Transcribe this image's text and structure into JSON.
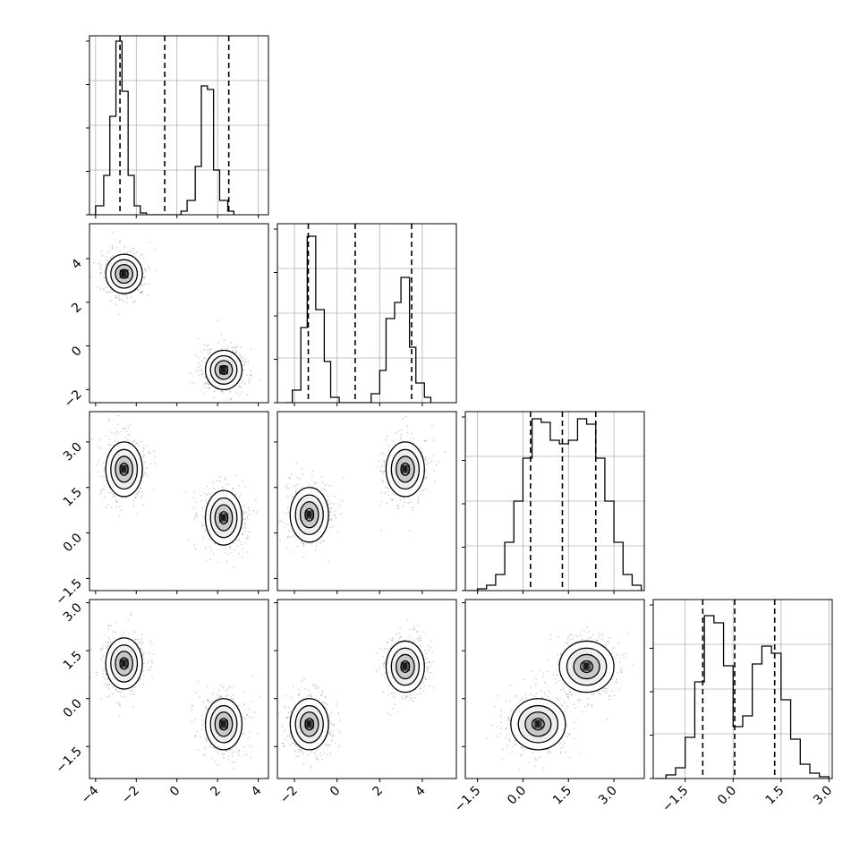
{
  "chart_data": [
    {
      "type": "histogram",
      "panel": "1d-0",
      "grid": true,
      "dashed_lines": [
        -2.8,
        -0.6,
        2.55
      ],
      "bins": [
        [
          -4.3,
          0
        ],
        [
          -4.0,
          0.05
        ],
        [
          -3.6,
          0.22
        ],
        [
          -3.3,
          0.55
        ],
        [
          -3.0,
          0.97
        ],
        [
          -2.7,
          0.69
        ],
        [
          -2.4,
          0.22
        ],
        [
          -2.1,
          0.05
        ],
        [
          -1.8,
          0.01
        ],
        [
          -1.5,
          0
        ],
        [
          0.2,
          0.02
        ],
        [
          0.5,
          0.08
        ],
        [
          0.9,
          0.27
        ],
        [
          1.2,
          0.72
        ],
        [
          1.5,
          0.7
        ],
        [
          1.8,
          0.25
        ],
        [
          2.1,
          0.08
        ],
        [
          2.5,
          0.02
        ],
        [
          2.8,
          0
        ]
      ]
    },
    {
      "type": "histogram",
      "panel": "1d-1",
      "grid": true,
      "dashed_lines": [
        -1.35,
        0.85,
        3.5
      ],
      "bins": [
        [
          -2.4,
          0
        ],
        [
          -2.1,
          0.07
        ],
        [
          -1.7,
          0.42
        ],
        [
          -1.4,
          0.93
        ],
        [
          -1.0,
          0.52
        ],
        [
          -0.6,
          0.23
        ],
        [
          -0.3,
          0.03
        ],
        [
          0.1,
          0
        ],
        [
          1.6,
          0.05
        ],
        [
          2.0,
          0.18
        ],
        [
          2.3,
          0.47
        ],
        [
          2.7,
          0.56
        ],
        [
          3.0,
          0.7
        ],
        [
          3.4,
          0.31
        ],
        [
          3.7,
          0.11
        ],
        [
          4.1,
          0.03
        ],
        [
          4.4,
          0
        ]
      ]
    },
    {
      "type": "histogram",
      "panel": "1d-2",
      "grid": true,
      "dashed_lines": [
        0.25,
        1.3,
        2.4
      ],
      "bins": [
        [
          -1.8,
          0
        ],
        [
          -1.5,
          0.01
        ],
        [
          -1.2,
          0.03
        ],
        [
          -0.9,
          0.09
        ],
        [
          -0.6,
          0.27
        ],
        [
          -0.3,
          0.5
        ],
        [
          0,
          0.74
        ],
        [
          0.3,
          0.96
        ],
        [
          0.6,
          0.94
        ],
        [
          0.9,
          0.84
        ],
        [
          1.2,
          0.82
        ],
        [
          1.5,
          0.84
        ],
        [
          1.8,
          0.96
        ],
        [
          2.1,
          0.93
        ],
        [
          2.4,
          0.74
        ],
        [
          2.7,
          0.5
        ],
        [
          3.0,
          0.27
        ],
        [
          3.3,
          0.09
        ],
        [
          3.6,
          0.03
        ],
        [
          3.9,
          0
        ]
      ]
    },
    {
      "type": "histogram",
      "panel": "1d-3",
      "grid": true,
      "dashed_lines": [
        -0.95,
        0.05,
        1.3
      ],
      "bins": [
        [
          -2.4,
          0
        ],
        [
          -2.1,
          0.02
        ],
        [
          -1.8,
          0.06
        ],
        [
          -1.5,
          0.23
        ],
        [
          -1.2,
          0.54
        ],
        [
          -0.9,
          0.91
        ],
        [
          -0.6,
          0.87
        ],
        [
          -0.3,
          0.63
        ],
        [
          0,
          0.29
        ],
        [
          0.3,
          0.35
        ],
        [
          0.6,
          0.64
        ],
        [
          0.9,
          0.74
        ],
        [
          1.2,
          0.7
        ],
        [
          1.5,
          0.44
        ],
        [
          1.8,
          0.22
        ],
        [
          2.1,
          0.08
        ],
        [
          2.4,
          0.03
        ],
        [
          2.7,
          0.01
        ],
        [
          3.0,
          0
        ]
      ]
    },
    {
      "type": "scatter",
      "panel": "2d-1-0",
      "x_label": "",
      "y_label": "",
      "clusters": [
        {
          "x": -2.6,
          "y": 3.3
        },
        {
          "x": 2.3,
          "y": -1.1
        }
      ]
    },
    {
      "type": "scatter",
      "panel": "2d-2-0",
      "x_label": "",
      "y_label": "",
      "clusters": [
        {
          "x": -2.6,
          "y": 2.1
        },
        {
          "x": 2.3,
          "y": 0.5
        }
      ]
    },
    {
      "type": "scatter",
      "panel": "2d-2-1",
      "x_label": "",
      "y_label": "",
      "clusters": [
        {
          "x": -1.3,
          "y": 0.6
        },
        {
          "x": 3.2,
          "y": 2.1
        }
      ]
    },
    {
      "type": "scatter",
      "panel": "2d-3-0",
      "x_label": "",
      "y_label": "",
      "clusters": [
        {
          "x": -2.6,
          "y": 1.1
        },
        {
          "x": 2.3,
          "y": -0.8
        }
      ]
    },
    {
      "type": "scatter",
      "panel": "2d-3-1",
      "x_label": "",
      "y_label": "",
      "clusters": [
        {
          "x": -1.3,
          "y": -0.8
        },
        {
          "x": 3.2,
          "y": 1.0
        }
      ]
    },
    {
      "type": "scatter",
      "panel": "2d-3-2",
      "x_label": "",
      "y_label": "",
      "clusters": [
        {
          "x": 0.5,
          "y": -0.8
        },
        {
          "x": 2.1,
          "y": 1.0
        }
      ]
    }
  ],
  "axes": {
    "x0": {
      "lim": [
        -4.3,
        4.5
      ],
      "ticks": [
        -4,
        -2,
        0,
        2,
        4
      ],
      "labels": [
        "−4",
        "−2",
        "0",
        "2",
        "4"
      ]
    },
    "x1": {
      "lim": [
        -2.8,
        5.6
      ],
      "ticks": [
        -2,
        0,
        2,
        4
      ],
      "labels": [
        "−2",
        "0",
        "2",
        "4"
      ]
    },
    "x2": {
      "lim": [
        -1.9,
        4.0
      ],
      "ticks": [
        -1.5,
        0,
        1.5,
        3
      ],
      "labels": [
        "−1.5",
        "0.0",
        "1.5",
        "3.0"
      ]
    },
    "x3": {
      "lim": [
        -2.5,
        3.1
      ],
      "ticks": [
        -1.5,
        0,
        1.5,
        3
      ],
      "labels": [
        "−1.5",
        "0.0",
        "1.5",
        "3.0"
      ]
    },
    "y1": {
      "lim": [
        -2.6,
        5.6
      ],
      "ticks": [
        -2,
        0,
        2,
        4
      ],
      "labels": [
        "−2",
        "0",
        "2",
        "4"
      ]
    },
    "y2": {
      "lim": [
        -1.9,
        4.0
      ],
      "ticks": [
        -1.5,
        0,
        1.5,
        3
      ],
      "labels": [
        "−1.5",
        "0.0",
        "1.5",
        "3.0"
      ]
    },
    "y3": {
      "lim": [
        -2.5,
        3.1
      ],
      "ticks": [
        -1.5,
        0,
        1.5,
        3
      ],
      "labels": [
        "−1.5",
        "0.0",
        "1.5",
        "3.0"
      ]
    }
  },
  "colors": {
    "scatter": "#888888",
    "contour": "#000000",
    "grid": "#b0b0b0",
    "hist": "#000000"
  }
}
